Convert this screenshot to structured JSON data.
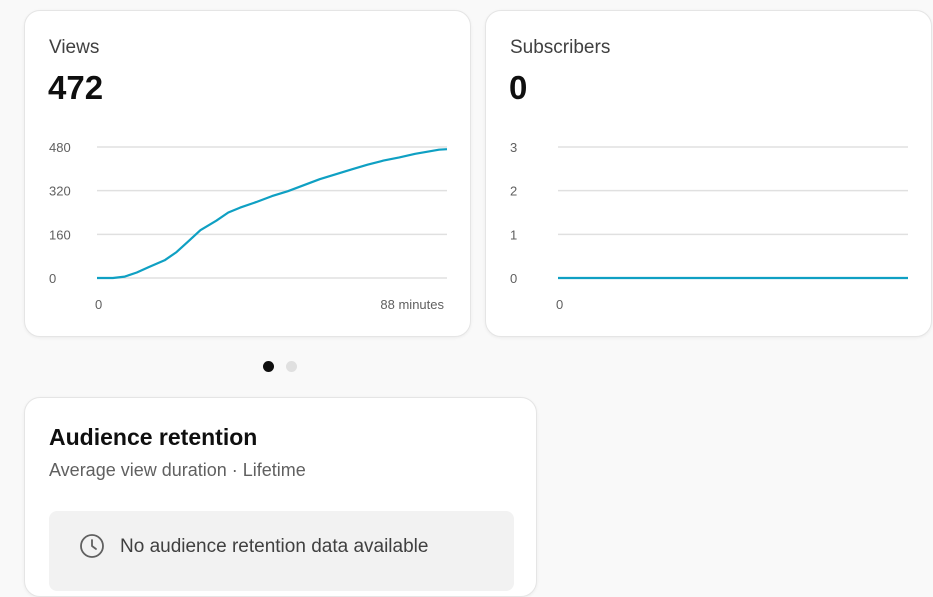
{
  "views_card": {
    "label": "Views",
    "value": "472",
    "chart_data": {
      "type": "line",
      "y_ticks": [
        "480",
        "320",
        "160",
        "0"
      ],
      "ylim": [
        0,
        480
      ],
      "x_start_label": "0",
      "x_end_label": "88 minutes",
      "xlim": [
        0,
        88
      ],
      "color": "#0fa0c3",
      "series": [
        {
          "x": [
            0,
            4,
            7,
            10,
            13,
            17,
            20,
            23,
            26,
            30,
            33,
            36,
            40,
            44,
            48,
            52,
            56,
            60,
            64,
            68,
            72,
            76,
            80,
            84,
            86,
            88
          ],
          "values": [
            0,
            0,
            5,
            20,
            40,
            65,
            95,
            135,
            175,
            210,
            240,
            258,
            278,
            300,
            318,
            340,
            362,
            380,
            398,
            415,
            430,
            442,
            455,
            465,
            470,
            472
          ]
        }
      ]
    }
  },
  "subs_card": {
    "label": "Subscribers",
    "value": "0",
    "chart_data": {
      "type": "line",
      "y_ticks": [
        "3",
        "2",
        "1",
        "0"
      ],
      "ylim": [
        0,
        3
      ],
      "x_start_label": "0",
      "color": "#0fa0c3"
    }
  },
  "carousel": {
    "active_index": 0,
    "count": 2
  },
  "retention": {
    "title": "Audience retention",
    "subtitle": "Average view duration · Lifetime",
    "empty_icon": "clock-icon",
    "empty_text": "No audience retention data available"
  }
}
